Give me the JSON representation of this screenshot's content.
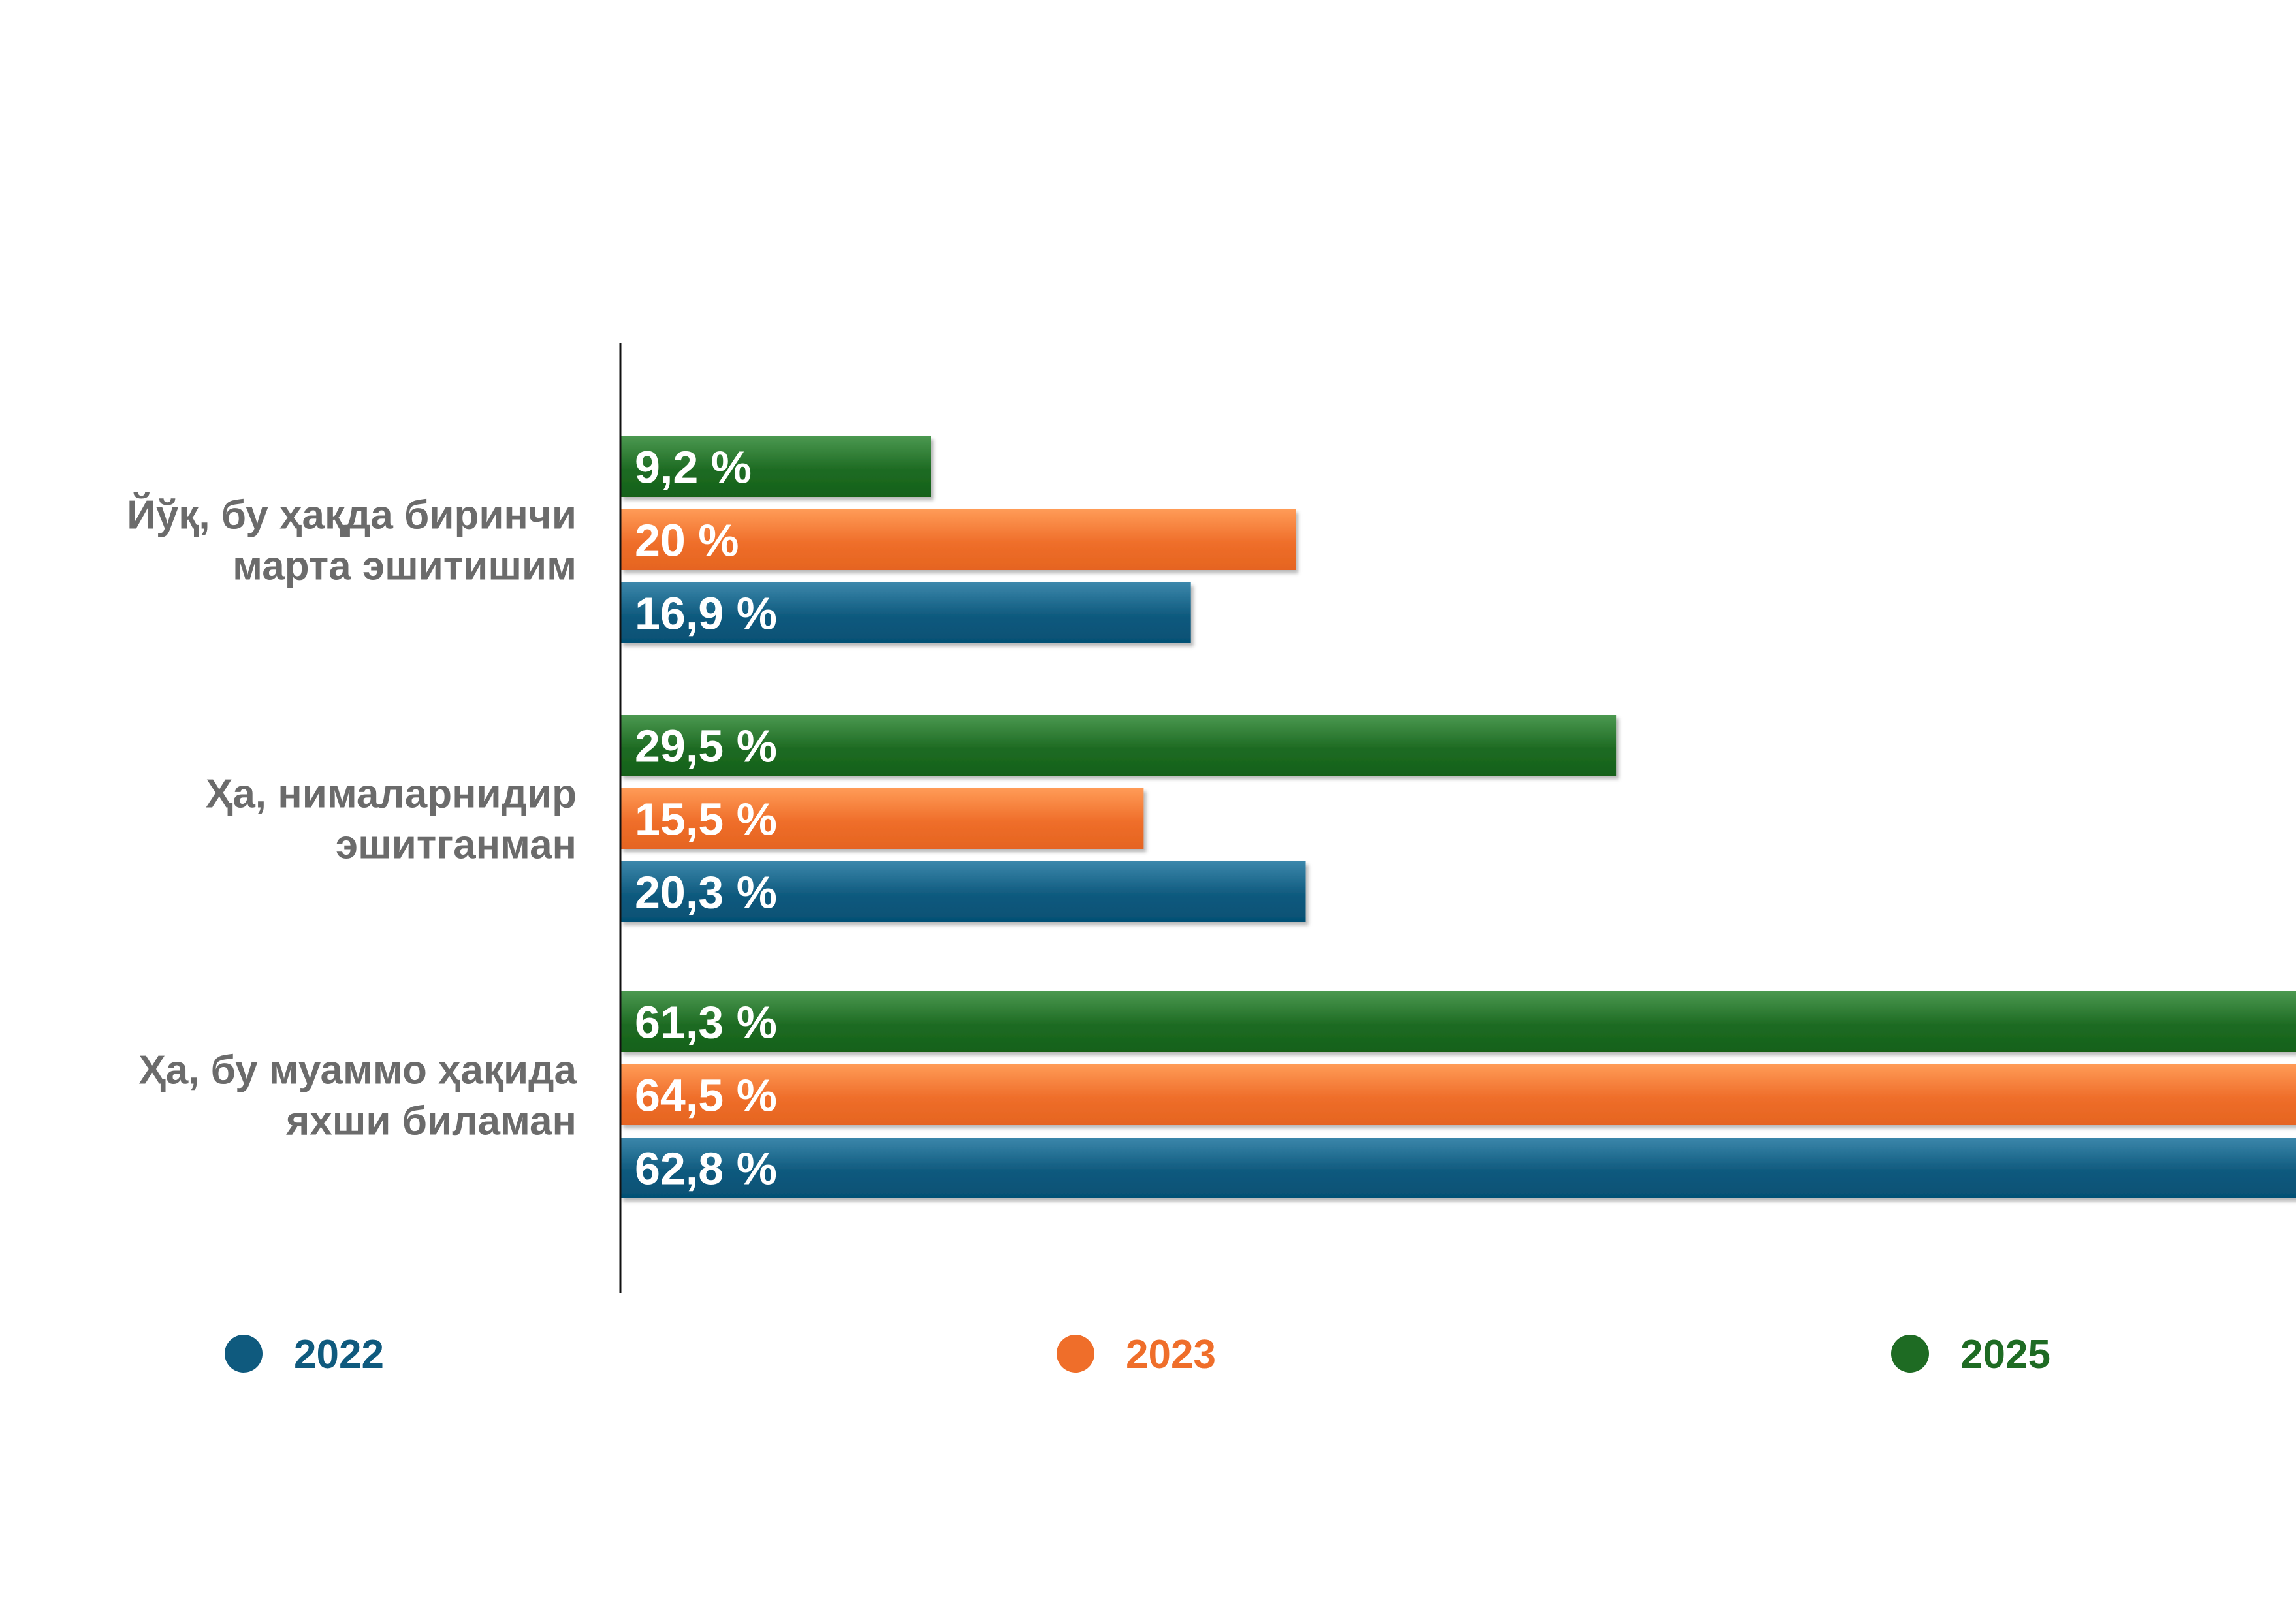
{
  "chart_data": {
    "type": "bar",
    "orientation": "horizontal",
    "title": "",
    "xlabel": "",
    "ylabel": "",
    "categories": [
      [
        "Йўқ, бу ҳақда биринчи",
        "марта эшитишим"
      ],
      [
        "Ҳа, нималарнидир",
        "эшитганман"
      ],
      [
        "Ҳа, бу муаммо ҳақида",
        "яхши биламан"
      ]
    ],
    "series": [
      {
        "name": "2025",
        "values": [
          9.2,
          29.5,
          61.3
        ],
        "labels": [
          "9,2 %",
          "29,5 %",
          "61,3 %"
        ],
        "color": "#1e6b23"
      },
      {
        "name": "2023",
        "values": [
          20,
          15.5,
          64.5
        ],
        "labels": [
          "20 %",
          "15,5 %",
          "64,5 %"
        ],
        "color": "#ef6e2a"
      },
      {
        "name": "2022",
        "values": [
          16.9,
          20.3,
          62.8
        ],
        "labels": [
          "16,9 %",
          "20,3 %",
          "62,8 %"
        ],
        "color": "#0f5a7e"
      }
    ],
    "xlim": [
      0,
      67
    ],
    "grid": false,
    "legend": {
      "placement": "bottom",
      "items": [
        {
          "name": "2022",
          "color": "#0f5a7e"
        },
        {
          "name": "2023",
          "color": "#ef6e2a"
        },
        {
          "name": "2025",
          "color": "#1e6b23"
        }
      ]
    },
    "colors": {
      "category_text": "#6b6b6b",
      "axis": "#111111",
      "value_label": "#ffffff"
    }
  }
}
